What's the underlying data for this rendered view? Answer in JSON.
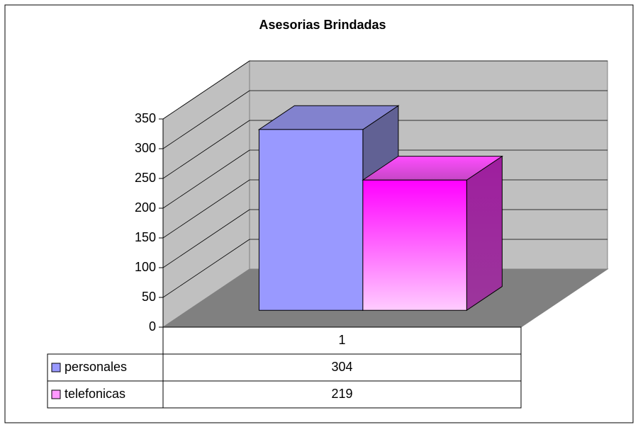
{
  "chart_data": {
    "type": "bar3d",
    "title": "Asesorias Brindadas",
    "categories": [
      "1"
    ],
    "series": [
      {
        "name": "personales",
        "color": "#9999ff",
        "values": [
          304
        ]
      },
      {
        "name": "telefonicas",
        "color": "#ff00ff",
        "values": [
          219
        ]
      }
    ],
    "ylim": [
      0,
      350
    ],
    "yticks": [
      0,
      50,
      100,
      150,
      200,
      250,
      300,
      350
    ],
    "grid": true,
    "data_table": true
  }
}
